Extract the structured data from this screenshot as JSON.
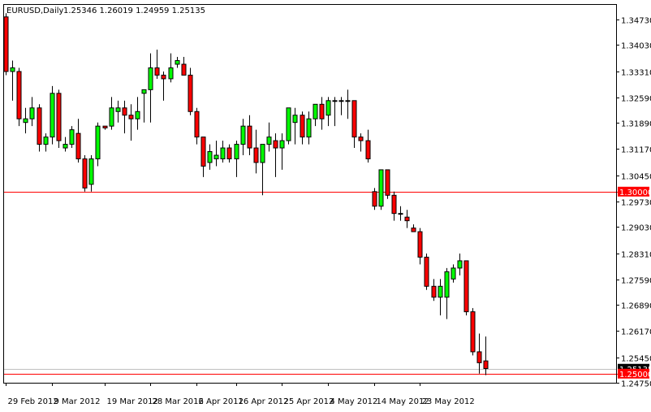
{
  "header": {
    "symbol": "EURUSD,Daily",
    "ohlc": "1.25346 1.26019 1.24959 1.25135"
  },
  "colors": {
    "background": "#ffffff",
    "frame": "#000000",
    "bull": "#00ff00",
    "bear": "#ff0000",
    "wick": "#000000",
    "level_line": "#ff0000",
    "level_label_bg": "#ff0000",
    "level_label_text": "#ffffff",
    "bid_label_bg": "#000000",
    "bid_label_text": "#ffffff"
  },
  "chart_data": {
    "type": "candlestick",
    "title": "EURUSD,Daily",
    "ylim": [
      1.2475,
      1.3513
    ],
    "y_ticks": [
      "1.34730",
      "1.34030",
      "1.33310",
      "1.32590",
      "1.31890",
      "1.31170",
      "1.30450",
      "1.29730",
      "1.29030",
      "1.28310",
      "1.27590",
      "1.26890",
      "1.26170",
      "1.25450",
      "1.24750"
    ],
    "x_ticks": [
      {
        "label": "29 Feb 2012",
        "index": 0
      },
      {
        "label": "9 Mar 2012",
        "index": 7
      },
      {
        "label": "19 Mar 2012",
        "index": 15
      },
      {
        "label": "28 Mar 2012",
        "index": 22
      },
      {
        "label": "6 Apr 2012",
        "index": 29
      },
      {
        "label": "16 Apr 2012",
        "index": 35
      },
      {
        "label": "25 Apr 2012",
        "index": 42
      },
      {
        "label": "4 May 2012",
        "index": 49
      },
      {
        "label": "14 May 2012",
        "index": 56
      },
      {
        "label": "23 May 2012",
        "index": 63
      }
    ],
    "horizontal_levels": [
      {
        "value": 1.3,
        "label": "1.30000"
      },
      {
        "value": 1.25,
        "label": "1.25000"
      }
    ],
    "current_price": {
      "value": 1.25135,
      "label": "1.25135"
    },
    "candles": [
      {
        "o": 1.348,
        "h": 1.349,
        "l": 1.332,
        "c": 1.333
      },
      {
        "o": 1.333,
        "h": 1.336,
        "l": 1.325,
        "c": 1.334
      },
      {
        "o": 1.333,
        "h": 1.334,
        "l": 1.318,
        "c": 1.32
      },
      {
        "o": 1.319,
        "h": 1.323,
        "l": 1.316,
        "c": 1.32
      },
      {
        "o": 1.32,
        "h": 1.326,
        "l": 1.318,
        "c": 1.323
      },
      {
        "o": 1.323,
        "h": 1.324,
        "l": 1.311,
        "c": 1.313
      },
      {
        "o": 1.313,
        "h": 1.316,
        "l": 1.311,
        "c": 1.315
      },
      {
        "o": 1.315,
        "h": 1.329,
        "l": 1.313,
        "c": 1.327
      },
      {
        "o": 1.327,
        "h": 1.328,
        "l": 1.312,
        "c": 1.314
      },
      {
        "o": 1.312,
        "h": 1.315,
        "l": 1.311,
        "c": 1.313
      },
      {
        "o": 1.313,
        "h": 1.318,
        "l": 1.312,
        "c": 1.317
      },
      {
        "o": 1.316,
        "h": 1.32,
        "l": 1.308,
        "c": 1.309
      },
      {
        "o": 1.309,
        "h": 1.31,
        "l": 1.3,
        "c": 1.301
      },
      {
        "o": 1.302,
        "h": 1.31,
        "l": 1.3,
        "c": 1.309
      },
      {
        "o": 1.309,
        "h": 1.319,
        "l": 1.307,
        "c": 1.318
      },
      {
        "o": 1.318,
        "h": 1.318,
        "l": 1.317,
        "c": 1.3175
      },
      {
        "o": 1.318,
        "h": 1.326,
        "l": 1.317,
        "c": 1.323
      },
      {
        "o": 1.322,
        "h": 1.325,
        "l": 1.319,
        "c": 1.323
      },
      {
        "o": 1.323,
        "h": 1.325,
        "l": 1.316,
        "c": 1.321
      },
      {
        "o": 1.321,
        "h": 1.324,
        "l": 1.314,
        "c": 1.32
      },
      {
        "o": 1.32,
        "h": 1.326,
        "l": 1.317,
        "c": 1.322
      },
      {
        "o": 1.327,
        "h": 1.328,
        "l": 1.319,
        "c": 1.328
      },
      {
        "o": 1.328,
        "h": 1.338,
        "l": 1.319,
        "c": 1.334
      },
      {
        "o": 1.334,
        "h": 1.339,
        "l": 1.331,
        "c": 1.332
      },
      {
        "o": 1.332,
        "h": 1.333,
        "l": 1.325,
        "c": 1.331
      },
      {
        "o": 1.331,
        "h": 1.338,
        "l": 1.33,
        "c": 1.334
      },
      {
        "o": 1.335,
        "h": 1.337,
        "l": 1.334,
        "c": 1.336
      },
      {
        "o": 1.335,
        "h": 1.337,
        "l": 1.332,
        "c": 1.332
      },
      {
        "o": 1.332,
        "h": 1.334,
        "l": 1.321,
        "c": 1.322
      },
      {
        "o": 1.322,
        "h": 1.323,
        "l": 1.313,
        "c": 1.315
      },
      {
        "o": 1.315,
        "h": 1.315,
        "l": 1.304,
        "c": 1.307
      },
      {
        "o": 1.308,
        "h": 1.313,
        "l": 1.306,
        "c": 1.311
      },
      {
        "o": 1.309,
        "h": 1.314,
        "l": 1.307,
        "c": 1.31
      },
      {
        "o": 1.309,
        "h": 1.314,
        "l": 1.308,
        "c": 1.312
      },
      {
        "o": 1.312,
        "h": 1.313,
        "l": 1.308,
        "c": 1.309
      },
      {
        "o": 1.309,
        "h": 1.314,
        "l": 1.304,
        "c": 1.313
      },
      {
        "o": 1.313,
        "h": 1.32,
        "l": 1.31,
        "c": 1.318
      },
      {
        "o": 1.318,
        "h": 1.321,
        "l": 1.31,
        "c": 1.312
      },
      {
        "o": 1.312,
        "h": 1.317,
        "l": 1.305,
        "c": 1.308
      },
      {
        "o": 1.308,
        "h": 1.313,
        "l": 1.299,
        "c": 1.313
      },
      {
        "o": 1.313,
        "h": 1.319,
        "l": 1.311,
        "c": 1.315
      },
      {
        "o": 1.314,
        "h": 1.316,
        "l": 1.304,
        "c": 1.312
      },
      {
        "o": 1.312,
        "h": 1.316,
        "l": 1.306,
        "c": 1.314
      },
      {
        "o": 1.314,
        "h": 1.323,
        "l": 1.313,
        "c": 1.323
      },
      {
        "o": 1.319,
        "h": 1.323,
        "l": 1.313,
        "c": 1.321
      },
      {
        "o": 1.321,
        "h": 1.322,
        "l": 1.313,
        "c": 1.315
      },
      {
        "o": 1.315,
        "h": 1.322,
        "l": 1.313,
        "c": 1.32
      },
      {
        "o": 1.32,
        "h": 1.324,
        "l": 1.318,
        "c": 1.324
      },
      {
        "o": 1.324,
        "h": 1.326,
        "l": 1.317,
        "c": 1.32
      },
      {
        "o": 1.321,
        "h": 1.326,
        "l": 1.318,
        "c": 1.325
      },
      {
        "o": 1.325,
        "h": 1.326,
        "l": 1.318,
        "c": 1.325
      },
      {
        "o": 1.325,
        "h": 1.326,
        "l": 1.321,
        "c": 1.325
      },
      {
        "o": 1.325,
        "h": 1.328,
        "l": 1.32,
        "c": 1.325
      },
      {
        "o": 1.325,
        "h": 1.325,
        "l": 1.312,
        "c": 1.315
      },
      {
        "o": 1.315,
        "h": 1.316,
        "l": 1.311,
        "c": 1.314
      },
      {
        "o": 1.314,
        "h": 1.317,
        "l": 1.308,
        "c": 1.309
      },
      {
        "o": 1.3,
        "h": 1.301,
        "l": 1.295,
        "c": 1.296
      },
      {
        "o": 1.296,
        "h": 1.306,
        "l": 1.295,
        "c": 1.306
      },
      {
        "o": 1.306,
        "h": 1.306,
        "l": 1.298,
        "c": 1.299
      },
      {
        "o": 1.299,
        "h": 1.3,
        "l": 1.292,
        "c": 1.294
      },
      {
        "o": 1.294,
        "h": 1.296,
        "l": 1.292,
        "c": 1.294
      },
      {
        "o": 1.293,
        "h": 1.295,
        "l": 1.29,
        "c": 1.292
      },
      {
        "o": 1.29,
        "h": 1.291,
        "l": 1.289,
        "c": 1.289
      },
      {
        "o": 1.289,
        "h": 1.29,
        "l": 1.28,
        "c": 1.282
      },
      {
        "o": 1.282,
        "h": 1.283,
        "l": 1.273,
        "c": 1.274
      },
      {
        "o": 1.274,
        "h": 1.276,
        "l": 1.27,
        "c": 1.271
      },
      {
        "o": 1.271,
        "h": 1.276,
        "l": 1.266,
        "c": 1.274
      },
      {
        "o": 1.271,
        "h": 1.279,
        "l": 1.265,
        "c": 1.278
      },
      {
        "o": 1.276,
        "h": 1.28,
        "l": 1.275,
        "c": 1.279
      },
      {
        "o": 1.279,
        "h": 1.283,
        "l": 1.277,
        "c": 1.281
      },
      {
        "o": 1.281,
        "h": 1.281,
        "l": 1.266,
        "c": 1.267
      },
      {
        "o": 1.267,
        "h": 1.268,
        "l": 1.255,
        "c": 1.256
      },
      {
        "o": 1.256,
        "h": 1.261,
        "l": 1.25,
        "c": 1.253
      },
      {
        "o": 1.2535,
        "h": 1.2602,
        "l": 1.2496,
        "c": 1.2514
      }
    ]
  }
}
